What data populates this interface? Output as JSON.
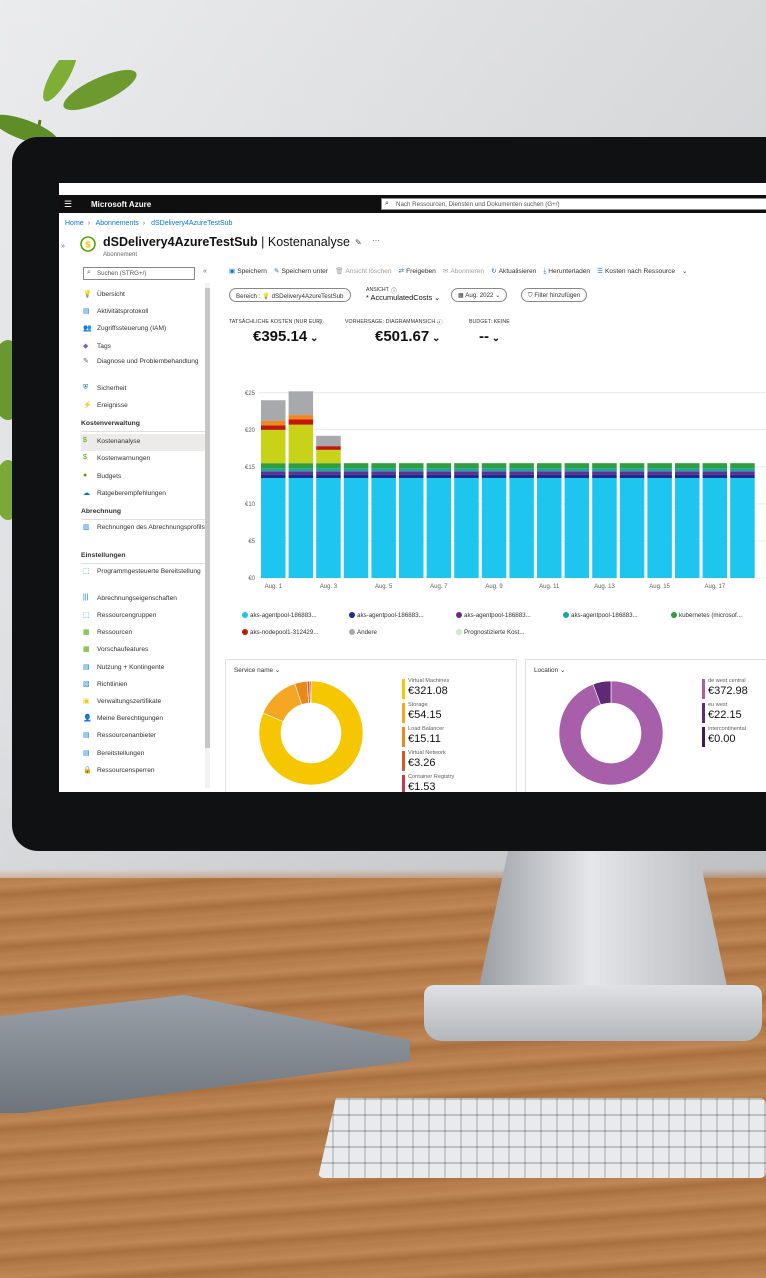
{
  "azure": {
    "brand": "Microsoft Azure",
    "search_placeholder": "Nach Ressourcen, Diensten und Dokumenten suchen (G+/)"
  },
  "breadcrumb": [
    "Home",
    "Abonnements",
    "dSDelivery4AzureTestSub"
  ],
  "page": {
    "title_name": "dSDelivery4AzureTestSub",
    "title_sep": " | ",
    "title_section": "Kostenanalyse",
    "subtitle": "Abonnement"
  },
  "sidebar": {
    "search_placeholder": "Suchen (STRG+/)",
    "items_top": [
      {
        "label": "Übersicht",
        "icon": "lightbulb-icon",
        "glyph": "💡",
        "color": "#f2c811"
      },
      {
        "label": "Aktivitätsprotokoll",
        "icon": "log-icon",
        "glyph": "▤",
        "color": "#0078d4"
      },
      {
        "label": "Zugriffssteuerung (IAM)",
        "icon": "people-icon",
        "glyph": "👥",
        "color": "#0078d4"
      },
      {
        "label": "Tags",
        "icon": "tag-icon",
        "glyph": "◆",
        "color": "#8661c5"
      },
      {
        "label": "Diagnose und Problembehandlung",
        "icon": "wrench-icon",
        "glyph": "✎",
        "color": "#605e5c",
        "two": true
      },
      {
        "label": "Sicherheit",
        "icon": "shield-icon",
        "glyph": "⛨",
        "color": "#0078d4"
      },
      {
        "label": "Ereignisse",
        "icon": "bolt-icon",
        "glyph": "⚡",
        "color": "#f2c811"
      }
    ],
    "section_cost": "Kostenverwaltung",
    "items_cost": [
      {
        "label": "Kostenanalyse",
        "icon": "cost-analysis-icon",
        "glyph": "$",
        "color": "#57a300",
        "active": true
      },
      {
        "label": "Kostenwarnungen",
        "icon": "cost-alert-icon",
        "glyph": "$",
        "color": "#57a300"
      },
      {
        "label": "Budgets",
        "icon": "budget-icon",
        "glyph": "●",
        "color": "#57a300"
      },
      {
        "label": "Ratgeberempfehlungen",
        "icon": "advisor-icon",
        "glyph": "☁",
        "color": "#0078d4"
      }
    ],
    "section_billing": "Abrechnung",
    "items_billing": [
      {
        "label": "Rechnungen des Abrechnungsprofils",
        "icon": "invoice-icon",
        "glyph": "▥",
        "color": "#0078d4",
        "two": true
      }
    ],
    "section_settings": "Einstellungen",
    "items_settings": [
      {
        "label": "Programmgesteuerte Bereitstellung",
        "icon": "deployment-icon",
        "glyph": "⬚",
        "color": "#0078d4",
        "two": true
      },
      {
        "label": "Abrechnungseigenschaften",
        "icon": "properties-icon",
        "glyph": "|||",
        "color": "#0078d4"
      },
      {
        "label": "Ressourcengruppen",
        "icon": "resource-group-icon",
        "glyph": "⬚",
        "color": "#0078d4"
      },
      {
        "label": "Ressourcen",
        "icon": "resources-icon",
        "glyph": "▦",
        "color": "#57a300"
      },
      {
        "label": "Vorschaufeatures",
        "icon": "preview-icon",
        "glyph": "▦",
        "color": "#57a300"
      },
      {
        "label": "Nutzung + Kontingente",
        "icon": "usage-icon",
        "glyph": "▤",
        "color": "#0078d4"
      },
      {
        "label": "Richtlinien",
        "icon": "policy-icon",
        "glyph": "▧",
        "color": "#0078d4"
      },
      {
        "label": "Verwaltungszertifikate",
        "icon": "certificate-icon",
        "glyph": "▣",
        "color": "#f2c811"
      },
      {
        "label": "Meine Berechtigungen",
        "icon": "person-icon",
        "glyph": "👤",
        "color": "#0078d4"
      },
      {
        "label": "Ressourcenanbieter",
        "icon": "provider-icon",
        "glyph": "▤",
        "color": "#0078d4"
      },
      {
        "label": "Bereitstellungen",
        "icon": "deployments-icon",
        "glyph": "▤",
        "color": "#0078d4"
      },
      {
        "label": "Ressourcensperren",
        "icon": "lock-icon",
        "glyph": "🔒",
        "color": "#0078d4"
      }
    ]
  },
  "toolbar": [
    {
      "label": "Speichern",
      "icon": "save-icon",
      "glyph": "▣",
      "disabled": false
    },
    {
      "label": "Speichern unter",
      "icon": "save-as-icon",
      "glyph": "✎",
      "disabled": false
    },
    {
      "label": "Ansicht löschen",
      "icon": "delete-icon",
      "glyph": "🗑",
      "disabled": true
    },
    {
      "label": "Freigeben",
      "icon": "share-icon",
      "glyph": "⇄",
      "disabled": false
    },
    {
      "label": "Abonnieren",
      "icon": "mail-icon",
      "glyph": "✉",
      "disabled": true
    },
    {
      "label": "Aktualisieren",
      "icon": "refresh-icon",
      "glyph": "↻",
      "disabled": false
    },
    {
      "label": "Herunterladen",
      "icon": "download-icon",
      "glyph": "⤓",
      "disabled": false
    },
    {
      "label": "Kosten nach Ressource",
      "icon": "list-icon",
      "glyph": "☰",
      "disabled": false
    }
  ],
  "filters": {
    "scope_label": "Bereich :",
    "scope_value": "dSDelivery4AzureTestSub",
    "view_label": "ANSICHT",
    "view_value": "* AccumulatedCosts",
    "date": "Aug. 2022",
    "add_filter": "Filter hinzufügen"
  },
  "kpis": [
    {
      "label": "TATSÄCHLICHE KOSTEN (NUR EUR)",
      "value": "€395.14"
    },
    {
      "label": "VORHERSAGE: DIAGRAMMANSICH...",
      "value": "€501.67"
    },
    {
      "label": "BUDGET: KEINE",
      "value": "--"
    }
  ],
  "chart_data": {
    "type": "bar",
    "stacked": true,
    "ylim": [
      0,
      27
    ],
    "yticks": [
      "€25",
      "€20",
      "€15",
      "€10",
      "€5",
      "€0"
    ],
    "ytick_values": [
      25,
      20,
      15,
      10,
      5,
      0
    ],
    "xtick_labels": [
      "Aug. 1",
      "Aug. 3",
      "Aug. 5",
      "Aug. 7",
      "Aug. 9",
      "Aug. 11",
      "Aug. 13",
      "Aug. 15",
      "Aug. 17"
    ],
    "categories": [
      "1",
      "2",
      "3",
      "4",
      "5",
      "6",
      "7",
      "8",
      "9",
      "10",
      "11",
      "12",
      "13",
      "14",
      "15",
      "16",
      "17",
      "18"
    ],
    "series": [
      {
        "name": "aks-agentpool-186883...",
        "color": "#1ec6ef",
        "values": [
          13.5,
          13.5,
          13.5,
          13.5,
          13.5,
          13.5,
          13.5,
          13.5,
          13.5,
          13.5,
          13.5,
          13.5,
          13.5,
          13.5,
          13.5,
          13.5,
          13.5,
          13.5
        ]
      },
      {
        "name": "aks-agentpool-186883...",
        "color": "#1c2c8c",
        "values": [
          0.5,
          0.5,
          0.5,
          0.5,
          0.5,
          0.5,
          0.5,
          0.5,
          0.5,
          0.5,
          0.5,
          0.5,
          0.5,
          0.5,
          0.5,
          0.5,
          0.5,
          0.5
        ]
      },
      {
        "name": "aks-agentpool-186883...",
        "color": "#6a2b91",
        "values": [
          0.4,
          0.4,
          0.4,
          0.4,
          0.4,
          0.4,
          0.4,
          0.4,
          0.4,
          0.4,
          0.4,
          0.4,
          0.4,
          0.4,
          0.4,
          0.4,
          0.4,
          0.4
        ]
      },
      {
        "name": "aks-agentpool-186883...",
        "color": "#18a7a0",
        "values": [
          0.4,
          0.4,
          0.4,
          0.4,
          0.4,
          0.4,
          0.4,
          0.4,
          0.4,
          0.4,
          0.4,
          0.4,
          0.4,
          0.4,
          0.4,
          0.4,
          0.4,
          0.4
        ]
      },
      {
        "name": "kubernetes (microsof...",
        "color": "#2e9e3e",
        "values": [
          0.7,
          0.7,
          0.7,
          0.7,
          0.7,
          0.7,
          0.7,
          0.7,
          0.7,
          0.7,
          0.7,
          0.7,
          0.7,
          0.7,
          0.7,
          0.7,
          0.7,
          0.7
        ]
      },
      {
        "name": "aks-nodepool1-312429...",
        "color": "#c8d219",
        "values": [
          4.5,
          5.2,
          1.8,
          0,
          0,
          0,
          0,
          0,
          0,
          0,
          0,
          0,
          0,
          0,
          0,
          0,
          0,
          0
        ]
      },
      {
        "name": "aks-nodepool1-312429...",
        "color": "#c0180f",
        "values": [
          0.6,
          0.7,
          0.5,
          0,
          0,
          0,
          0,
          0,
          0,
          0,
          0,
          0,
          0,
          0,
          0,
          0,
          0,
          0
        ]
      },
      {
        "name": "",
        "color": "#f18a1e",
        "values": [
          0.6,
          0.6,
          0,
          0,
          0,
          0,
          0,
          0,
          0,
          0,
          0,
          0,
          0,
          0,
          0,
          0,
          0,
          0
        ]
      },
      {
        "name": "Andere",
        "color": "#a7a9ac",
        "values": [
          2.8,
          3.2,
          1.4,
          0,
          0,
          0,
          0,
          0,
          0,
          0,
          0,
          0,
          0,
          0,
          0,
          0,
          0,
          0
        ]
      }
    ],
    "legend": [
      {
        "name": "aks-agentpool-186883...",
        "color": "#1ec6ef"
      },
      {
        "name": "aks-agentpool-186883...",
        "color": "#1c2c8c"
      },
      {
        "name": "aks-agentpool-186883...",
        "color": "#6a2b91"
      },
      {
        "name": "aks-agentpool-186883...",
        "color": "#18a7a0"
      },
      {
        "name": "kubernetes (microsof...",
        "color": "#2e9e3e"
      },
      {
        "name": "aks-nodepool1-312429...",
        "color": "#c0180f"
      },
      {
        "name": "Andere",
        "color": "#a7a9ac"
      },
      {
        "name": "Prognostizierte Kost...",
        "color": "#c6eec1"
      }
    ]
  },
  "service_card": {
    "title": "Service name",
    "items": [
      {
        "name": "Virtual Machines",
        "value": "€321.08",
        "amount": 321.08,
        "color": "#f6c700"
      },
      {
        "name": "Storage",
        "value": "€54.15",
        "amount": 54.15,
        "color": "#f5a623"
      },
      {
        "name": "Load Balancer",
        "value": "€15.11",
        "amount": 15.11,
        "color": "#e8891a"
      },
      {
        "name": "Virtual Network",
        "value": "€3.26",
        "amount": 3.26,
        "color": "#d9572b"
      },
      {
        "name": "Container Registry",
        "value": "€1.53",
        "amount": 1.53,
        "color": "#c8384a"
      }
    ]
  },
  "location_card": {
    "title": "Location",
    "items": [
      {
        "name": "de west central",
        "value": "€372.98",
        "amount": 372.98,
        "color": "#a65fa8"
      },
      {
        "name": "eu west",
        "value": "€22.15",
        "amount": 22.15,
        "color": "#5e2a76"
      },
      {
        "name": "intercontinental",
        "value": "€0.00",
        "amount": 0.0,
        "color": "#3b1d50"
      }
    ]
  }
}
